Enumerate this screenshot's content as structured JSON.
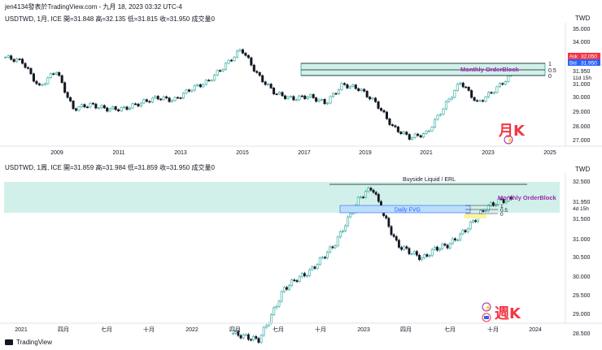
{
  "header": {
    "text": "jen4134發表於TradingView.com - 九月 18, 2023 03:32 UTC-4"
  },
  "top": {
    "title": "USDTWD, 1月, ICE  開=31.848  高=32.135  低=31.815  收=31.950  成交量0",
    "currency": "TWD",
    "y_ticks": [
      "35.000",
      "34.000",
      "33.000",
      "31.000",
      "30.000",
      "29.000",
      "28.000",
      "27.000"
    ],
    "x_ticks": [
      "2009",
      "2011",
      "2013",
      "2015",
      "2017",
      "2019",
      "2021",
      "2023",
      "2025"
    ],
    "ask_label": "Ask",
    "ask_value": "32.050",
    "bid_label": "Bid",
    "bid_value": "31.950",
    "last_value": "31.950",
    "countdown": "11d 15h",
    "fib_levels": [
      "1",
      "0.5",
      "0"
    ],
    "ob_label": "Monthly OrderBlock",
    "big_label": "月K"
  },
  "bottom": {
    "title": "USDTWD, 1周, ICE  開=31.859  高=31.984  低=31.859  收=31.950  成交量0",
    "currency": "TWD",
    "y_ticks": [
      "32.500",
      "31.500",
      "31.000",
      "30.500",
      "30.000",
      "29.500",
      "29.000",
      "28.500"
    ],
    "x_ticks": [
      "2021",
      "四月",
      "七月",
      "十月",
      "2022",
      "四月",
      "七月",
      "十月",
      "2023",
      "四月",
      "七月",
      "十月",
      "2024"
    ],
    "last_value": "31.950",
    "countdown": "4d 15h",
    "fib_levels": [
      "1",
      "0.5",
      "0"
    ],
    "ob_label": "Monthly OrderBlock",
    "liquid_label": "Buyside Liquid / ERL",
    "fvg_label": "Daily FVG",
    "big_label": "週K"
  },
  "footer": {
    "brand": "TradingView"
  },
  "colors": {
    "up": "#26a69a",
    "down": "#131722",
    "ob_zone": "#d1f0e9",
    "accent": "#9c27b0",
    "red": "#f23645",
    "blue": "#2962ff"
  },
  "chart_data": [
    {
      "type": "candlestick",
      "title": "USDTWD, 1月, ICE",
      "x": [
        "2009",
        "2011",
        "2013",
        "2015",
        "2017",
        "2019",
        "2021",
        "2023",
        "2025"
      ],
      "close_approx": [
        33.2,
        32.9,
        31.1,
        32.3,
        29.6,
        29.9,
        29.6,
        29.6,
        30.0,
        30.4,
        30.2,
        31.0,
        31.5,
        32.6,
        33.8,
        31.9,
        30.7,
        30.3,
        30.5,
        30.0,
        31.3,
        31.0,
        30.0,
        28.3,
        27.6,
        27.9,
        29.7,
        31.5,
        30.0,
        30.9,
        31.95
      ],
      "ylim": [
        27.0,
        35.5
      ],
      "annotations": [
        "Monthly OrderBlock",
        "1",
        "0.5",
        "0"
      ]
    },
    {
      "type": "candlestick",
      "title": "USDTWD, 1周, ICE",
      "x": [
        "2021",
        "四月",
        "七月",
        "十月",
        "2022",
        "四月",
        "七月",
        "十月",
        "2023",
        "四月",
        "七月",
        "十月",
        "2024"
      ],
      "close_approx": [
        28.0,
        27.9,
        27.8,
        28.5,
        29.3,
        29.6,
        29.8,
        30.2,
        30.6,
        31.3,
        32.0,
        32.3,
        31.4,
        30.6,
        30.4,
        30.2,
        30.5,
        30.6,
        30.9,
        31.3,
        31.7,
        31.9,
        31.95
      ],
      "ylim": [
        28.3,
        32.7
      ],
      "annotations": [
        "Buyside Liquid / ERL",
        "Daily FVG",
        "Monthly OrderBlock",
        "1",
        "0.5",
        "0"
      ]
    }
  ]
}
